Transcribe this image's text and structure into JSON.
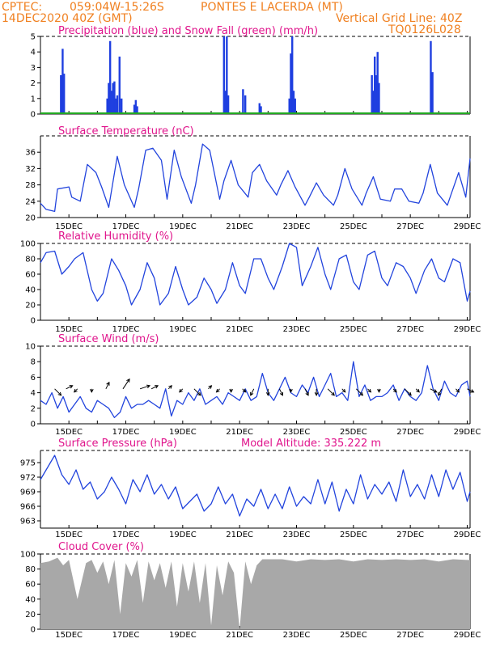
{
  "header": {
    "source": "CPTEC:",
    "coords": "059:04W-15:26S",
    "station": "PONTES E LACERDA (MT)",
    "date": "14DEC2020 40Z (GMT)",
    "grid_note": "Vertical Grid Line: 40Z",
    "model": "TQ0126L028"
  },
  "colors": {
    "header": "#f08020",
    "title": "#e0158c",
    "line": "#2244dd",
    "bar": "#1f3fe0",
    "snow": "#22aa22",
    "cloud": "#a8a8a8"
  },
  "date_ticks": [
    "15DEC",
    "17DEC",
    "19DEC",
    "21DEC",
    "23DEC",
    "25DEC",
    "27DEC",
    "29DEC"
  ],
  "chart_data": [
    {
      "type": "bar",
      "title": "Precipitation (blue) and Snow Fall (green) (mm/h)",
      "ylim": [
        0,
        5
      ],
      "yticks": [
        "0",
        "1",
        "2",
        "3",
        "4",
        "5"
      ],
      "x_range_days": [
        14.0,
        29.1
      ],
      "series": [
        {
          "name": "Precipitation",
          "x": [
            14.72,
            14.78,
            14.83,
            16.35,
            16.4,
            16.45,
            16.5,
            16.55,
            16.6,
            16.65,
            16.7,
            16.78,
            16.85,
            17.3,
            17.35,
            17.4,
            20.45,
            20.5,
            20.55,
            20.6,
            21.12,
            21.2,
            21.7,
            21.75,
            22.75,
            22.8,
            22.85,
            22.9,
            22.95,
            25.65,
            25.7,
            25.75,
            25.8,
            25.85,
            25.9,
            27.72,
            27.78
          ],
          "values": [
            2.5,
            4.2,
            2.6,
            1.0,
            2.0,
            4.7,
            1.5,
            2.0,
            2.1,
            1.0,
            1.2,
            3.7,
            1.0,
            0.6,
            0.9,
            0.5,
            5.0,
            1.5,
            5.0,
            1.2,
            1.6,
            1.2,
            0.7,
            0.5,
            1.0,
            3.9,
            5.0,
            1.5,
            1.0,
            2.5,
            1.5,
            3.7,
            2.5,
            4.0,
            2.0,
            4.7,
            2.7
          ]
        },
        {
          "name": "Snow Fall",
          "x": [
            14.0,
            29.1
          ],
          "values": [
            0,
            0
          ]
        }
      ]
    },
    {
      "type": "line",
      "title": "Surface Temperature (nC)",
      "ylim": [
        20,
        40
      ],
      "yticks": [
        "20",
        "24",
        "28",
        "32",
        "36"
      ],
      "x_range_days": [
        14.0,
        29.1
      ],
      "series": [
        {
          "name": "Temperature",
          "x": [
            14.0,
            14.2,
            14.5,
            14.6,
            15.0,
            15.1,
            15.4,
            15.65,
            15.95,
            16.15,
            16.4,
            16.7,
            16.95,
            17.3,
            17.45,
            17.7,
            17.95,
            18.25,
            18.45,
            18.7,
            18.95,
            19.3,
            19.45,
            19.7,
            19.95,
            20.3,
            20.45,
            20.7,
            20.95,
            21.3,
            21.45,
            21.7,
            21.95,
            22.3,
            22.45,
            22.7,
            22.95,
            23.3,
            23.45,
            23.7,
            23.95,
            24.3,
            24.45,
            24.7,
            24.95,
            25.3,
            25.45,
            25.7,
            25.95,
            26.3,
            26.45,
            26.7,
            26.95,
            27.3,
            27.45,
            27.7,
            27.95,
            28.3,
            28.45,
            28.7,
            28.95,
            29.1
          ],
          "values": [
            23.5,
            22.0,
            21.5,
            27.0,
            27.5,
            25.0,
            24.0,
            33.0,
            31.0,
            27.5,
            22.5,
            35.0,
            28.0,
            22.5,
            27.0,
            36.5,
            37.0,
            34.0,
            24.5,
            36.5,
            30.0,
            23.5,
            28.0,
            38.0,
            36.5,
            24.5,
            29.0,
            34.0,
            28.0,
            25.0,
            31.0,
            33.0,
            29.0,
            25.5,
            28.0,
            31.5,
            27.5,
            23.0,
            25.0,
            28.5,
            25.5,
            23.0,
            25.5,
            32.0,
            27.0,
            23.0,
            26.0,
            30.0,
            24.5,
            24.0,
            27.0,
            27.0,
            24.0,
            23.5,
            26.0,
            33.0,
            26.0,
            23.0,
            26.0,
            31.0,
            25.0,
            34.5
          ]
        }
      ]
    },
    {
      "type": "line",
      "title": "Relative Humidity (%)",
      "ylim": [
        0,
        100
      ],
      "yticks": [
        "0",
        "20",
        "40",
        "60",
        "80",
        "100"
      ],
      "x_range_days": [
        14.0,
        29.1
      ],
      "series": [
        {
          "name": "Relative Humidity",
          "x": [
            14.0,
            14.2,
            14.5,
            14.75,
            15.0,
            15.2,
            15.5,
            15.8,
            16.0,
            16.2,
            16.5,
            16.75,
            17.0,
            17.2,
            17.5,
            17.75,
            18.0,
            18.2,
            18.5,
            18.75,
            19.0,
            19.2,
            19.5,
            19.75,
            20.0,
            20.2,
            20.5,
            20.75,
            21.0,
            21.2,
            21.5,
            21.75,
            22.0,
            22.2,
            22.5,
            22.75,
            23.0,
            23.2,
            23.5,
            23.75,
            24.0,
            24.2,
            24.5,
            24.75,
            25.0,
            25.2,
            25.5,
            25.75,
            26.0,
            26.2,
            26.5,
            26.75,
            27.0,
            27.2,
            27.5,
            27.75,
            28.0,
            28.2,
            28.5,
            28.75,
            29.0,
            29.1
          ],
          "values": [
            75,
            88,
            90,
            60,
            70,
            80,
            88,
            40,
            25,
            35,
            80,
            65,
            45,
            20,
            40,
            75,
            55,
            20,
            35,
            70,
            40,
            20,
            30,
            55,
            40,
            22,
            40,
            75,
            45,
            35,
            80,
            80,
            55,
            40,
            70,
            100,
            95,
            45,
            70,
            95,
            60,
            40,
            80,
            85,
            50,
            40,
            85,
            90,
            55,
            45,
            75,
            70,
            55,
            35,
            65,
            80,
            55,
            50,
            80,
            75,
            25,
            38
          ]
        }
      ]
    },
    {
      "type": "line",
      "title": "Surface Wind (m/s)",
      "ylim": [
        0,
        10
      ],
      "yticks": [
        "0",
        "2",
        "4",
        "6",
        "8",
        "10"
      ],
      "x_range_days": [
        14.0,
        29.1
      ],
      "series": [
        {
          "name": "Wind Speed",
          "x": [
            14.0,
            14.2,
            14.4,
            14.6,
            14.8,
            15.0,
            15.2,
            15.4,
            15.6,
            15.8,
            16.0,
            16.2,
            16.4,
            16.6,
            16.8,
            17.0,
            17.2,
            17.4,
            17.6,
            17.8,
            18.0,
            18.2,
            18.4,
            18.6,
            18.8,
            19.0,
            19.2,
            19.4,
            19.6,
            19.8,
            20.0,
            20.2,
            20.4,
            20.6,
            20.8,
            21.0,
            21.2,
            21.4,
            21.6,
            21.8,
            22.0,
            22.2,
            22.4,
            22.6,
            22.8,
            23.0,
            23.2,
            23.4,
            23.6,
            23.8,
            24.0,
            24.2,
            24.4,
            24.6,
            24.8,
            25.0,
            25.2,
            25.4,
            25.6,
            25.8,
            26.0,
            26.2,
            26.4,
            26.6,
            26.8,
            27.0,
            27.2,
            27.4,
            27.6,
            27.8,
            28.0,
            28.2,
            28.4,
            28.6,
            28.8,
            29.0,
            29.1
          ],
          "values": [
            3.0,
            2.5,
            4.0,
            2.0,
            3.5,
            1.5,
            2.5,
            3.5,
            2.0,
            1.5,
            3.0,
            2.5,
            2.0,
            0.8,
            1.5,
            3.5,
            2.0,
            2.5,
            2.5,
            3.0,
            2.5,
            2.0,
            4.5,
            1.0,
            3.0,
            2.5,
            4.0,
            3.0,
            4.5,
            2.5,
            3.0,
            3.5,
            2.5,
            4.0,
            3.5,
            3.0,
            4.5,
            3.0,
            3.5,
            6.5,
            4.0,
            3.0,
            4.5,
            6.0,
            4.0,
            3.5,
            5.0,
            4.0,
            6.0,
            3.5,
            5.0,
            6.5,
            3.5,
            4.0,
            3.0,
            8.0,
            3.5,
            5.0,
            3.0,
            3.5,
            3.5,
            4.0,
            5.0,
            3.0,
            4.5,
            3.5,
            3.0,
            4.0,
            7.5,
            4.5,
            3.0,
            5.5,
            4.0,
            3.5,
            5.0,
            5.5,
            3.5
          ]
        },
        {
          "name": "Wind Vectors",
          "x": [
            14.5,
            14.9,
            15.3,
            15.8,
            16.3,
            16.9,
            17.5,
            17.9,
            18.5,
            19.0,
            19.4,
            19.9,
            20.3,
            20.7,
            21.1,
            21.5,
            22.0,
            22.4,
            22.8,
            23.3,
            23.7,
            24.1,
            24.6,
            25.1,
            25.5,
            25.9,
            26.4,
            26.8,
            27.2,
            27.7,
            28.1,
            28.6,
            29.0
          ],
          "u": [
            2,
            2,
            -1,
            0,
            1,
            2,
            3,
            2,
            1,
            -1,
            2,
            1,
            -1,
            0,
            1,
            -1,
            0,
            1,
            0,
            1,
            0,
            2,
            1,
            2,
            1,
            0,
            1,
            2,
            1,
            2,
            -1,
            1,
            2
          ],
          "v": [
            -2,
            1,
            -1,
            -1,
            2,
            3,
            1,
            1,
            1,
            -1,
            -2,
            1,
            -1,
            -1,
            -1,
            -2,
            -2,
            -2,
            -1,
            -2,
            -2,
            -2,
            -1,
            -2,
            -1,
            -1,
            -1,
            -2,
            -1,
            -1,
            -2,
            -1,
            -1
          ]
        }
      ]
    },
    {
      "type": "line",
      "title": "Surface Pressure (hPa)",
      "annotation": "Model Altitude: 335.222 m",
      "ylim": [
        961.5,
        977.5
      ],
      "yticks": [
        "963",
        "966",
        "969",
        "972",
        "975"
      ],
      "x_range_days": [
        14.0,
        29.1
      ],
      "series": [
        {
          "name": "Pressure",
          "x": [
            14.0,
            14.25,
            14.5,
            14.75,
            15.0,
            15.25,
            15.5,
            15.75,
            16.0,
            16.25,
            16.5,
            16.75,
            17.0,
            17.25,
            17.5,
            17.75,
            18.0,
            18.25,
            18.5,
            18.75,
            19.0,
            19.25,
            19.5,
            19.75,
            20.0,
            20.25,
            20.5,
            20.75,
            21.0,
            21.25,
            21.5,
            21.75,
            22.0,
            22.25,
            22.5,
            22.75,
            23.0,
            23.25,
            23.5,
            23.75,
            24.0,
            24.25,
            24.5,
            24.75,
            25.0,
            25.25,
            25.5,
            25.75,
            26.0,
            26.25,
            26.5,
            26.75,
            27.0,
            27.25,
            27.5,
            27.75,
            28.0,
            28.25,
            28.5,
            28.75,
            29.0,
            29.1
          ],
          "values": [
            971.5,
            974.0,
            976.5,
            972.5,
            970.5,
            973.5,
            969.5,
            971.0,
            967.5,
            969.0,
            972.0,
            969.5,
            966.5,
            971.5,
            969.0,
            972.5,
            968.5,
            970.5,
            967.5,
            970.0,
            965.5,
            967.0,
            968.5,
            965.0,
            966.5,
            970.0,
            966.5,
            968.5,
            964.0,
            967.5,
            966.0,
            969.5,
            965.5,
            968.5,
            965.5,
            970.0,
            966.0,
            968.0,
            966.5,
            971.5,
            966.5,
            971.0,
            965.0,
            969.5,
            966.5,
            972.5,
            967.5,
            970.5,
            968.5,
            971.0,
            967.0,
            973.5,
            968.0,
            970.5,
            967.5,
            972.5,
            968.0,
            973.5,
            969.5,
            973.0,
            967.0,
            969.0
          ]
        }
      ]
    },
    {
      "type": "area",
      "title": "Cloud Cover (%)",
      "ylim": [
        0,
        100
      ],
      "yticks": [
        "0",
        "20",
        "40",
        "60",
        "80",
        "100"
      ],
      "x_range_days": [
        14.0,
        29.1
      ],
      "series": [
        {
          "name": "Cloud Cover",
          "x": [
            14.0,
            14.3,
            14.6,
            14.8,
            15.0,
            15.3,
            15.6,
            15.8,
            16.0,
            16.2,
            16.4,
            16.6,
            16.8,
            17.0,
            17.2,
            17.4,
            17.6,
            17.8,
            18.0,
            18.2,
            18.4,
            18.6,
            18.8,
            19.0,
            19.2,
            19.4,
            19.6,
            19.8,
            20.0,
            20.2,
            20.4,
            20.6,
            20.8,
            21.0,
            21.2,
            21.4,
            21.6,
            21.8,
            22.0,
            22.5,
            23.0,
            23.5,
            24.0,
            24.5,
            25.0,
            25.5,
            26.0,
            26.5,
            27.0,
            27.5,
            28.0,
            28.5,
            29.0,
            29.1
          ],
          "values": [
            88,
            90,
            95,
            85,
            92,
            40,
            88,
            92,
            75,
            90,
            60,
            92,
            20,
            88,
            70,
            92,
            35,
            90,
            65,
            88,
            55,
            90,
            30,
            88,
            50,
            90,
            35,
            88,
            5,
            85,
            45,
            90,
            75,
            0,
            90,
            60,
            85,
            93,
            93,
            93,
            90,
            93,
            92,
            93,
            90,
            93,
            92,
            93,
            92,
            93,
            90,
            93,
            92,
            92
          ]
        }
      ]
    }
  ]
}
